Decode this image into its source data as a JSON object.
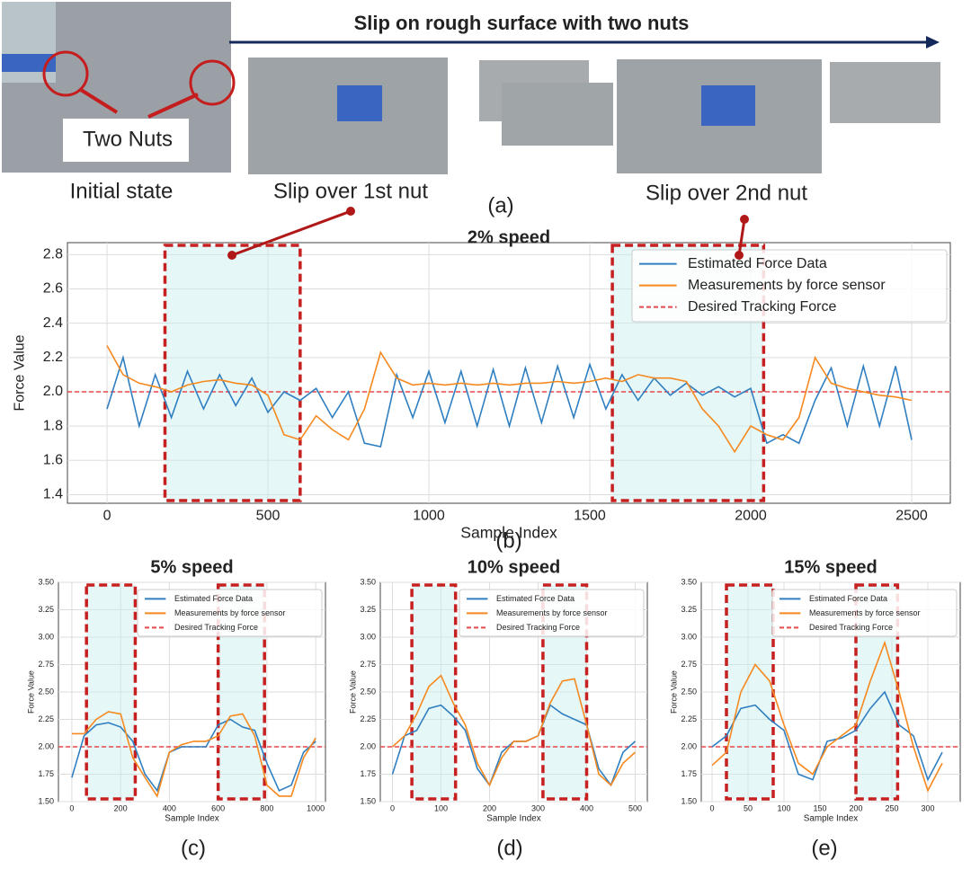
{
  "figure": {
    "banner": "Slip on rough surface with two nuts",
    "nuts_label": "Two Nuts",
    "captions": [
      "Initial state",
      "Slip over 1st nut",
      "Slip over 2nd nut"
    ],
    "panel_a": "(a)",
    "panel_b": "(b)",
    "panel_c": "(c)",
    "panel_d": "(d)",
    "panel_e": "(e)"
  },
  "chart_data": [
    {
      "type": "line",
      "title": "2% speed",
      "x_label": "Sample Index",
      "y_label": "Force Value",
      "x": [
        0,
        50,
        100,
        150,
        200,
        250,
        300,
        350,
        400,
        450,
        500,
        550,
        600,
        650,
        700,
        750,
        800,
        850,
        900,
        950,
        1000,
        1050,
        1100,
        1150,
        1200,
        1250,
        1300,
        1350,
        1400,
        1450,
        1500,
        1550,
        1600,
        1650,
        1700,
        1750,
        1800,
        1850,
        1900,
        1950,
        2000,
        2050,
        2100,
        2150,
        2200,
        2250,
        2300,
        2350,
        2400,
        2450,
        2500
      ],
      "series": [
        {
          "name": "Estimated Force Data",
          "color": "#2f7fc1",
          "values": [
            1.9,
            2.2,
            1.8,
            2.1,
            1.85,
            2.12,
            1.9,
            2.1,
            1.92,
            2.08,
            1.88,
            2.0,
            1.95,
            2.02,
            1.85,
            2.0,
            1.7,
            1.68,
            2.1,
            1.85,
            2.12,
            1.82,
            2.12,
            1.8,
            2.13,
            1.8,
            2.14,
            1.82,
            2.15,
            1.85,
            2.16,
            1.9,
            2.1,
            1.95,
            2.08,
            1.98,
            2.05,
            1.98,
            2.03,
            1.97,
            2.02,
            1.7,
            1.75,
            1.7,
            1.95,
            2.14,
            1.8,
            2.15,
            1.8,
            2.15,
            1.72
          ]
        },
        {
          "name": "Measurements by force sensor",
          "color": "#f5891f",
          "values": [
            2.27,
            2.1,
            2.05,
            2.03,
            2.0,
            2.04,
            2.06,
            2.07,
            2.05,
            2.04,
            1.98,
            1.75,
            1.72,
            1.86,
            1.78,
            1.72,
            1.9,
            2.23,
            2.08,
            2.04,
            2.05,
            2.04,
            2.05,
            2.04,
            2.05,
            2.04,
            2.05,
            2.05,
            2.06,
            2.05,
            2.06,
            2.08,
            2.06,
            2.1,
            2.08,
            2.08,
            2.06,
            1.9,
            1.8,
            1.65,
            1.8,
            1.75,
            1.72,
            1.85,
            2.2,
            2.05,
            2.02,
            2.0,
            1.98,
            1.97,
            1.95
          ]
        }
      ],
      "reference": {
        "name": "Desired Tracking Force",
        "color": "#e8474b",
        "value": 2.0
      },
      "highlights": [
        [
          180,
          600
        ],
        [
          1570,
          2040
        ]
      ],
      "highlight_color": "#c62020",
      "xlim": [
        -123,
        2620
      ],
      "ylim": [
        1.35,
        2.87
      ],
      "xticks": [
        0,
        500,
        1000,
        1500,
        2000,
        2500
      ],
      "yticks": [
        1.4,
        1.6,
        1.8,
        {
          "value": 2.0,
          "label": "2.0"
        },
        2.2,
        2.4,
        2.6,
        2.8
      ],
      "grid": true,
      "legend": "upper right"
    },
    {
      "type": "line",
      "title": "5% speed",
      "x_label": "Sample Index",
      "y_label": "Force Value",
      "x": [
        0,
        50,
        100,
        150,
        200,
        250,
        300,
        350,
        400,
        450,
        500,
        550,
        600,
        650,
        700,
        750,
        800,
        850,
        900,
        950,
        1000
      ],
      "series": [
        {
          "name": "Estimated Force Data",
          "color": "#2f7fc1",
          "values": [
            1.72,
            2.1,
            2.2,
            2.22,
            2.18,
            2.05,
            1.75,
            1.6,
            1.95,
            2.0,
            2.0,
            2.0,
            2.2,
            2.25,
            2.18,
            2.15,
            1.85,
            1.6,
            1.65,
            1.95,
            2.05
          ]
        },
        {
          "name": "Measurements by force sensor",
          "color": "#f5891f",
          "values": [
            2.12,
            2.12,
            2.25,
            2.32,
            2.3,
            1.9,
            1.72,
            1.55,
            1.95,
            2.02,
            2.05,
            2.05,
            2.1,
            2.28,
            2.3,
            2.1,
            1.65,
            1.55,
            1.55,
            1.9,
            2.08
          ]
        }
      ],
      "reference": {
        "name": "Desired Tracking Force",
        "color": "#e8474b",
        "value": 2.0
      },
      "highlights": [
        [
          60,
          260
        ],
        [
          600,
          790
        ]
      ],
      "highlight_color": "#c62020",
      "xlim": [
        -55,
        1040
      ],
      "ylim": [
        1.5,
        3.5
      ],
      "xticks": [
        0,
        200,
        400,
        600,
        800,
        1000
      ],
      "yticks": [
        {
          "value": 1.5,
          "label": "1.50"
        },
        {
          "value": 1.75,
          "label": "1.75"
        },
        {
          "value": 2.0,
          "label": "2.00"
        },
        {
          "value": 2.25,
          "label": "2.25"
        },
        {
          "value": 2.5,
          "label": "2.50"
        },
        {
          "value": 2.75,
          "label": "2.75"
        },
        {
          "value": 3.0,
          "label": "3.00"
        },
        {
          "value": 3.25,
          "label": "3.25"
        },
        {
          "value": 3.5,
          "label": "3.50"
        }
      ],
      "grid": true,
      "legend": "upper right"
    },
    {
      "type": "line",
      "title": "10% speed",
      "x_label": "Sample Index",
      "y_label": "Force Value",
      "x": [
        0,
        25,
        50,
        75,
        100,
        125,
        150,
        175,
        200,
        225,
        250,
        275,
        300,
        325,
        350,
        375,
        400,
        425,
        450,
        475,
        500
      ],
      "series": [
        {
          "name": "Estimated Force Data",
          "color": "#2f7fc1",
          "values": [
            1.75,
            2.1,
            2.15,
            2.35,
            2.38,
            2.28,
            2.15,
            1.8,
            1.65,
            1.95,
            2.05,
            2.05,
            2.1,
            2.38,
            2.3,
            2.25,
            2.2,
            1.8,
            1.65,
            1.95,
            2.05
          ]
        },
        {
          "name": "Measurements by force sensor",
          "color": "#f5891f",
          "values": [
            2.0,
            2.1,
            2.3,
            2.55,
            2.65,
            2.4,
            2.2,
            1.85,
            1.65,
            1.9,
            2.05,
            2.05,
            2.1,
            2.4,
            2.6,
            2.62,
            2.2,
            1.75,
            1.65,
            1.85,
            1.95
          ]
        }
      ],
      "reference": {
        "name": "Desired Tracking Force",
        "color": "#e8474b",
        "value": 2.0
      },
      "highlights": [
        [
          40,
          130
        ],
        [
          310,
          400
        ]
      ],
      "highlight_color": "#c62020",
      "xlim": [
        -25,
        525
      ],
      "ylim": [
        1.5,
        3.5
      ],
      "xticks": [
        0,
        100,
        200,
        300,
        400,
        500
      ],
      "yticks": [
        {
          "value": 1.5,
          "label": "1.50"
        },
        {
          "value": 1.75,
          "label": "1.75"
        },
        {
          "value": 2.0,
          "label": "2.00"
        },
        {
          "value": 2.25,
          "label": "2.25"
        },
        {
          "value": 2.5,
          "label": "2.50"
        },
        {
          "value": 2.75,
          "label": "2.75"
        },
        {
          "value": 3.0,
          "label": "3.00"
        },
        {
          "value": 3.25,
          "label": "3.25"
        },
        {
          "value": 3.5,
          "label": "3.50"
        }
      ],
      "grid": true,
      "legend": "upper right"
    },
    {
      "type": "line",
      "title": "15% speed",
      "x_label": "Sample Index",
      "y_label": "Force Value",
      "x": [
        0,
        20,
        40,
        60,
        80,
        100,
        120,
        140,
        160,
        180,
        200,
        220,
        240,
        260,
        280,
        300,
        320
      ],
      "series": [
        {
          "name": "Estimated Force Data",
          "color": "#2f7fc1",
          "values": [
            2.0,
            2.1,
            2.35,
            2.38,
            2.25,
            2.15,
            1.75,
            1.7,
            2.05,
            2.08,
            2.15,
            2.35,
            2.5,
            2.2,
            2.1,
            1.7,
            1.95
          ]
        },
        {
          "name": "Measurements by force sensor",
          "color": "#f5891f",
          "values": [
            1.83,
            1.95,
            2.5,
            2.75,
            2.6,
            2.2,
            1.85,
            1.75,
            2.0,
            2.1,
            2.2,
            2.6,
            2.95,
            2.5,
            2.0,
            1.6,
            1.85
          ]
        }
      ],
      "reference": {
        "name": "Desired Tracking Force",
        "color": "#e8474b",
        "value": 2.0
      },
      "highlights": [
        [
          20,
          85
        ],
        [
          200,
          258
        ]
      ],
      "highlight_color": "#c62020",
      "xlim": [
        -15,
        345
      ],
      "ylim": [
        1.5,
        3.5
      ],
      "xticks": [
        0,
        50,
        100,
        150,
        200,
        250,
        300
      ],
      "yticks": [
        {
          "value": 1.5,
          "label": "1.50"
        },
        {
          "value": 1.75,
          "label": "1.75"
        },
        {
          "value": 2.0,
          "label": "2.00"
        },
        {
          "value": 2.25,
          "label": "2.25"
        },
        {
          "value": 2.5,
          "label": "2.50"
        },
        {
          "value": 2.75,
          "label": "2.75"
        },
        {
          "value": 3.0,
          "label": "3.00"
        },
        {
          "value": 3.25,
          "label": "3.25"
        },
        {
          "value": 3.5,
          "label": "3.50"
        }
      ],
      "grid": true,
      "legend": "upper right"
    }
  ]
}
